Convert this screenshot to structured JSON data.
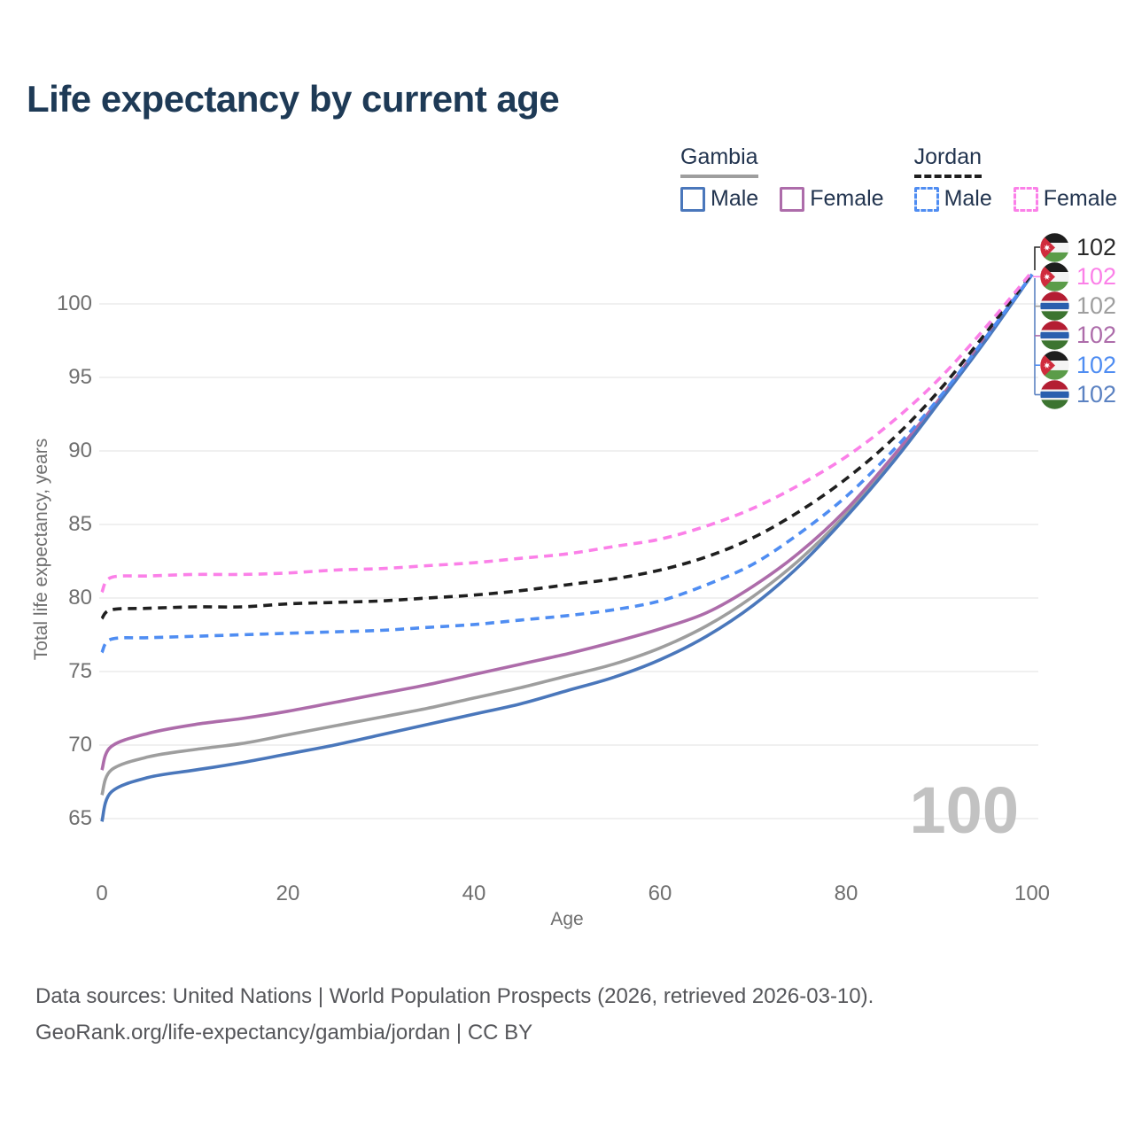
{
  "title": "Life expectancy by current age",
  "colors": {
    "title": "#1e3a56",
    "axis_text": "#6f6f6f",
    "grid": "#ebebeb",
    "watermark": "#c2c2c2",
    "footer": "#55565a"
  },
  "legend": {
    "groups": [
      {
        "country": "Gambia",
        "line_style": "solid",
        "line_color": "#9e9e9e",
        "items": [
          {
            "label": "Male",
            "color": "#4a77bb",
            "dashed": false
          },
          {
            "label": "Female",
            "color": "#ad6caa",
            "dashed": false
          }
        ]
      },
      {
        "country": "Jordan",
        "line_style": "dashed",
        "line_color": "#1f1f1f",
        "items": [
          {
            "label": "Male",
            "color": "#4f8df2",
            "dashed": true
          },
          {
            "label": "Female",
            "color": "#fb80e8",
            "dashed": true
          }
        ]
      }
    ]
  },
  "chart_data": {
    "type": "line",
    "title": "Life expectancy by current age",
    "xlabel": "Age",
    "ylabel": "Total life expectancy, years",
    "xticks": [
      0,
      20,
      40,
      60,
      80,
      100
    ],
    "yticks": [
      65,
      70,
      75,
      80,
      85,
      90,
      95,
      100
    ],
    "xlim": [
      0,
      100
    ],
    "ylim": [
      64,
      103
    ],
    "grid": "horizontal-only",
    "legend_position": "top-right",
    "watermark": "100",
    "ages": [
      0,
      1,
      5,
      10,
      15,
      20,
      25,
      30,
      35,
      40,
      45,
      50,
      55,
      60,
      65,
      70,
      75,
      80,
      85,
      90,
      95,
      100
    ],
    "series": [
      {
        "key": "gambia-all",
        "name": "Gambia All",
        "country": "gambia",
        "color": "#9e9e9e",
        "dashed": false,
        "values": [
          66.6,
          68.3,
          69.2,
          69.7,
          70.1,
          70.7,
          71.3,
          71.9,
          72.5,
          73.2,
          73.9,
          74.7,
          75.5,
          76.6,
          78.1,
          80.1,
          82.6,
          85.7,
          89.4,
          93.4,
          97.6,
          102.0
        ]
      },
      {
        "key": "gambia-female",
        "name": "Gambia Female",
        "country": "gambia",
        "color": "#ad6caa",
        "dashed": false,
        "values": [
          68.3,
          69.9,
          70.8,
          71.4,
          71.8,
          72.3,
          72.9,
          73.5,
          74.1,
          74.8,
          75.5,
          76.2,
          77.0,
          77.9,
          79.0,
          80.8,
          83.1,
          86.0,
          89.6,
          93.5,
          97.7,
          102.0
        ]
      },
      {
        "key": "gambia-male",
        "name": "Gambia Male",
        "country": "gambia",
        "color": "#4a77bb",
        "dashed": false,
        "values": [
          64.8,
          66.8,
          67.8,
          68.3,
          68.8,
          69.4,
          70.0,
          70.7,
          71.4,
          72.1,
          72.8,
          73.7,
          74.6,
          75.8,
          77.4,
          79.5,
          82.2,
          85.5,
          89.2,
          93.3,
          97.5,
          102.0
        ]
      },
      {
        "key": "jordan-all",
        "name": "Jordan All",
        "country": "jordan",
        "color": "#1f1f1f",
        "dashed": true,
        "values": [
          78.6,
          79.2,
          79.3,
          79.4,
          79.4,
          79.6,
          79.7,
          79.8,
          80.0,
          80.2,
          80.5,
          80.9,
          81.3,
          81.9,
          82.8,
          84.1,
          85.9,
          88.1,
          90.8,
          94.1,
          98.0,
          102.1
        ]
      },
      {
        "key": "jordan-male",
        "name": "Jordan Male",
        "country": "jordan",
        "color": "#4f8df2",
        "dashed": true,
        "values": [
          76.3,
          77.2,
          77.3,
          77.4,
          77.5,
          77.6,
          77.7,
          77.8,
          78.0,
          78.2,
          78.5,
          78.8,
          79.2,
          79.8,
          80.9,
          82.3,
          84.4,
          86.9,
          90.0,
          93.6,
          97.7,
          102.0
        ]
      },
      {
        "key": "jordan-female",
        "name": "Jordan Female",
        "country": "jordan",
        "color": "#fb80e8",
        "dashed": true,
        "values": [
          80.4,
          81.4,
          81.5,
          81.6,
          81.6,
          81.7,
          81.9,
          82.0,
          82.2,
          82.4,
          82.7,
          83.0,
          83.5,
          84.0,
          84.9,
          86.1,
          87.7,
          89.6,
          92.0,
          94.9,
          98.4,
          102.2
        ]
      }
    ],
    "end_labels": [
      {
        "series": "Jordan All",
        "country": "jordan",
        "value": "102",
        "color": "#2a2a2a"
      },
      {
        "series": "Jordan Female",
        "country": "jordan",
        "value": "102",
        "color": "#fb80e8"
      },
      {
        "series": "Gambia All",
        "country": "gambia",
        "value": "102",
        "color": "#9e9e9e"
      },
      {
        "series": "Gambia Female",
        "country": "gambia",
        "value": "102",
        "color": "#ad6caa"
      },
      {
        "series": "Jordan Male",
        "country": "jordan",
        "value": "102",
        "color": "#4f8df2"
      },
      {
        "series": "Gambia Male",
        "country": "gambia",
        "value": "102",
        "color": "#5b82c2"
      }
    ],
    "flag_colors": {
      "jordan": {
        "black": "#1e1e1e",
        "white": "#f4f4f4",
        "green": "#5b9c49",
        "red": "#d02c3d",
        "star": "#ffffff"
      },
      "gambia": {
        "red": "#b41e33",
        "white": "#f2f2f2",
        "blue": "#2a5fae",
        "green": "#3c7430"
      }
    }
  },
  "footer": {
    "line1": "Data sources: United Nations | World Population Prospects (2026, retrieved 2026-03-10).",
    "line2": "GeoRank.org/life-expectancy/gambia/jordan | CC BY"
  }
}
